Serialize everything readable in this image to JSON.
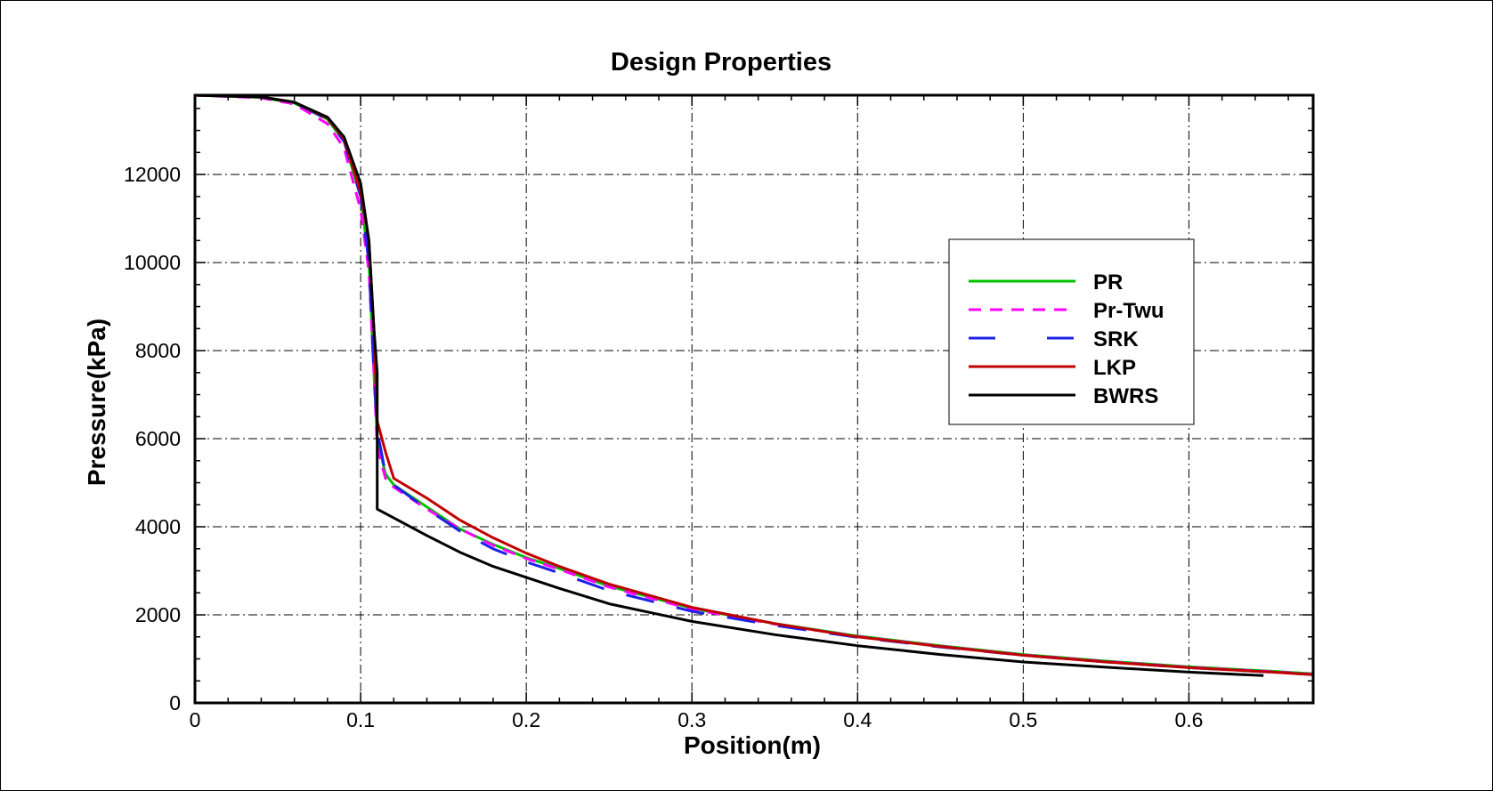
{
  "chart_data": {
    "type": "line",
    "title": "Design Properties",
    "xlabel": "Position(m)",
    "ylabel": "Pressure(kPa)",
    "xlim": [
      0,
      0.675
    ],
    "ylim": [
      0,
      13800
    ],
    "x_ticks": [
      0,
      0.1,
      0.2,
      0.3,
      0.4,
      0.5,
      0.6
    ],
    "x_tick_labels": [
      "0",
      "0.1",
      "0.2",
      "0.3",
      "0.4",
      "0.5",
      "0.6"
    ],
    "y_ticks": [
      0,
      2000,
      4000,
      6000,
      8000,
      10000,
      12000
    ],
    "y_tick_labels": [
      "0",
      "2000",
      "4000",
      "6000",
      "8000",
      "10000",
      "12000"
    ],
    "grid": true,
    "legend_position": "right",
    "series": [
      {
        "name": "PR",
        "color": "#00c000",
        "dash": "solid",
        "points": [
          [
            0,
            13800
          ],
          [
            0.04,
            13750
          ],
          [
            0.06,
            13620
          ],
          [
            0.08,
            13250
          ],
          [
            0.09,
            12750
          ],
          [
            0.1,
            11500
          ],
          [
            0.105,
            10000
          ],
          [
            0.108,
            7500
          ],
          [
            0.11,
            6000
          ],
          [
            0.115,
            5200
          ],
          [
            0.12,
            4950
          ],
          [
            0.14,
            4450
          ],
          [
            0.16,
            3950
          ],
          [
            0.18,
            3600
          ],
          [
            0.2,
            3300
          ],
          [
            0.22,
            3050
          ],
          [
            0.25,
            2650
          ],
          [
            0.3,
            2150
          ],
          [
            0.35,
            1800
          ],
          [
            0.4,
            1520
          ],
          [
            0.45,
            1300
          ],
          [
            0.5,
            1100
          ],
          [
            0.55,
            950
          ],
          [
            0.6,
            820
          ],
          [
            0.65,
            720
          ],
          [
            0.675,
            660
          ]
        ]
      },
      {
        "name": "Pr-Twu",
        "color": "#ff00ff",
        "dash": "dashed",
        "points": [
          [
            0,
            13800
          ],
          [
            0.04,
            13740
          ],
          [
            0.06,
            13600
          ],
          [
            0.08,
            13150
          ],
          [
            0.09,
            12600
          ],
          [
            0.1,
            11200
          ],
          [
            0.105,
            9800
          ],
          [
            0.108,
            7500
          ],
          [
            0.11,
            5800
          ],
          [
            0.115,
            5100
          ],
          [
            0.12,
            4900
          ],
          [
            0.14,
            4400
          ],
          [
            0.16,
            3950
          ],
          [
            0.18,
            3580
          ],
          [
            0.2,
            3280
          ],
          [
            0.22,
            3030
          ],
          [
            0.25,
            2630
          ],
          [
            0.3,
            2130
          ],
          [
            0.35,
            1790
          ],
          [
            0.4,
            1510
          ],
          [
            0.45,
            1290
          ],
          [
            0.5,
            1090
          ],
          [
            0.55,
            940
          ],
          [
            0.6,
            810
          ],
          [
            0.65,
            710
          ],
          [
            0.675,
            650
          ]
        ]
      },
      {
        "name": "SRK",
        "color": "#1f1fe8",
        "dash": "longdash",
        "points": [
          [
            0,
            13800
          ],
          [
            0.04,
            13760
          ],
          [
            0.06,
            13640
          ],
          [
            0.08,
            13250
          ],
          [
            0.09,
            12750
          ],
          [
            0.1,
            11500
          ],
          [
            0.105,
            10000
          ],
          [
            0.108,
            7500
          ],
          [
            0.11,
            6200
          ],
          [
            0.115,
            5200
          ],
          [
            0.12,
            4950
          ],
          [
            0.14,
            4400
          ],
          [
            0.16,
            3900
          ],
          [
            0.18,
            3500
          ],
          [
            0.2,
            3200
          ],
          [
            0.22,
            2950
          ],
          [
            0.25,
            2550
          ],
          [
            0.3,
            2080
          ],
          [
            0.35,
            1760
          ],
          [
            0.4,
            1490
          ],
          [
            0.45,
            1270
          ],
          [
            0.5,
            1080
          ],
          [
            0.55,
            930
          ],
          [
            0.6,
            800
          ],
          [
            0.65,
            700
          ],
          [
            0.675,
            640
          ]
        ]
      },
      {
        "name": "LKP",
        "color": "#c00000",
        "dash": "solid",
        "points": [
          [
            0,
            13800
          ],
          [
            0.04,
            13760
          ],
          [
            0.06,
            13640
          ],
          [
            0.08,
            13280
          ],
          [
            0.09,
            12800
          ],
          [
            0.1,
            11600
          ],
          [
            0.105,
            10500
          ],
          [
            0.108,
            8500
          ],
          [
            0.11,
            6400
          ],
          [
            0.115,
            5700
          ],
          [
            0.12,
            5100
          ],
          [
            0.14,
            4650
          ],
          [
            0.16,
            4150
          ],
          [
            0.18,
            3750
          ],
          [
            0.2,
            3400
          ],
          [
            0.22,
            3100
          ],
          [
            0.25,
            2700
          ],
          [
            0.3,
            2170
          ],
          [
            0.35,
            1800
          ],
          [
            0.4,
            1500
          ],
          [
            0.45,
            1280
          ],
          [
            0.5,
            1080
          ],
          [
            0.55,
            930
          ],
          [
            0.6,
            800
          ],
          [
            0.65,
            700
          ],
          [
            0.675,
            640
          ]
        ]
      },
      {
        "name": "BWRS",
        "color": "#000000",
        "dash": "solid",
        "points": [
          [
            0,
            13800
          ],
          [
            0.04,
            13760
          ],
          [
            0.06,
            13640
          ],
          [
            0.08,
            13300
          ],
          [
            0.09,
            12850
          ],
          [
            0.1,
            11800
          ],
          [
            0.105,
            10500
          ],
          [
            0.108,
            8500
          ],
          [
            0.11,
            7500
          ],
          [
            0.11,
            4400
          ],
          [
            0.12,
            4200
          ],
          [
            0.14,
            3800
          ],
          [
            0.16,
            3420
          ],
          [
            0.18,
            3100
          ],
          [
            0.2,
            2850
          ],
          [
            0.22,
            2600
          ],
          [
            0.25,
            2250
          ],
          [
            0.3,
            1850
          ],
          [
            0.35,
            1550
          ],
          [
            0.4,
            1300
          ],
          [
            0.45,
            1100
          ],
          [
            0.5,
            930
          ],
          [
            0.55,
            810
          ],
          [
            0.6,
            700
          ],
          [
            0.645,
            620
          ]
        ]
      }
    ]
  }
}
